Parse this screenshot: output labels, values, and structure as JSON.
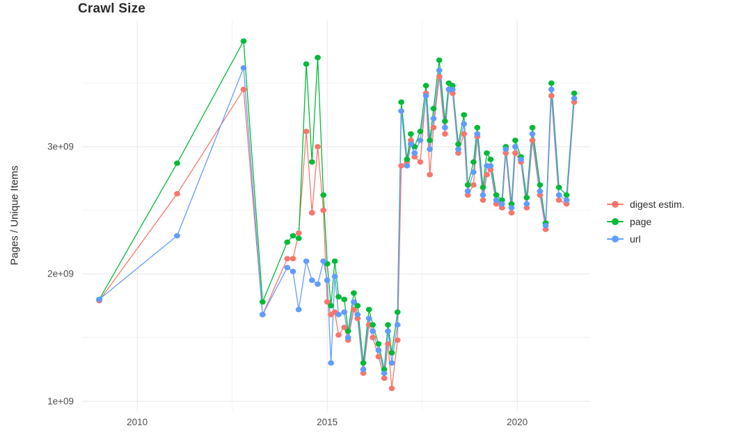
{
  "title": "Crawl Size",
  "chart_data": {
    "type": "line",
    "title": "Crawl Size",
    "xlabel": "",
    "ylabel": "Pages / Unique Items",
    "grid": "on",
    "legend_position": "right",
    "background": "#ffffff",
    "grid_major_color": "#e7e7e7",
    "grid_minor_color": "#f3f3f3",
    "tick_label_color": "#4d4d4d",
    "xlim": [
      2008.55,
      2021.92
    ],
    "ylim": [
      920000000.0,
      4000000000.0
    ],
    "x_ticks": [
      {
        "value": 2010,
        "label": "2010"
      },
      {
        "value": 2015,
        "label": "2015"
      },
      {
        "value": 2020,
        "label": "2020"
      }
    ],
    "y_ticks": [
      {
        "value": 1000000000.0,
        "label": "1e+09"
      },
      {
        "value": 2000000000.0,
        "label": "2e+09"
      },
      {
        "value": 3000000000.0,
        "label": "3e+09"
      }
    ],
    "x_minor_ticks": [
      2012.5,
      2017.5
    ],
    "y_minor_ticks": [
      1500000000.0,
      2500000000.0,
      3500000000.0
    ],
    "x": [
      2009.0,
      2011.05,
      2012.8,
      2013.3,
      2013.95,
      2014.1,
      2014.25,
      2014.45,
      2014.6,
      2014.75,
      2014.9,
      2015.0,
      2015.1,
      2015.2,
      2015.3,
      2015.45,
      2015.55,
      2015.7,
      2015.8,
      2015.95,
      2016.1,
      2016.2,
      2016.35,
      2016.5,
      2016.6,
      2016.7,
      2016.85,
      2016.95,
      2017.1,
      2017.2,
      2017.3,
      2017.45,
      2017.6,
      2017.7,
      2017.8,
      2017.95,
      2018.1,
      2018.2,
      2018.3,
      2018.45,
      2018.6,
      2018.7,
      2018.85,
      2018.95,
      2019.1,
      2019.2,
      2019.3,
      2019.45,
      2019.6,
      2019.7,
      2019.85,
      2019.95,
      2020.1,
      2020.25,
      2020.4,
      2020.6,
      2020.75,
      2020.9,
      2021.1,
      2021.3,
      2021.5
    ],
    "series": [
      {
        "name": "digest estim.",
        "color": "#F8766D",
        "values": [
          1790000000.0,
          2630000000.0,
          3450000000.0,
          1680000000.0,
          2120000000.0,
          2120000000.0,
          2320000000.0,
          3120000000.0,
          2480000000.0,
          3000000000.0,
          2500000000.0,
          1780000000.0,
          1680000000.0,
          1700000000.0,
          1520000000.0,
          1580000000.0,
          1480000000.0,
          1720000000.0,
          1650000000.0,
          1220000000.0,
          1600000000.0,
          1500000000.0,
          1350000000.0,
          1180000000.0,
          1450000000.0,
          1100000000.0,
          1480000000.0,
          2850000000.0,
          2880000000.0,
          3050000000.0,
          2920000000.0,
          2880000000.0,
          3420000000.0,
          2780000000.0,
          3150000000.0,
          3550000000.0,
          3100000000.0,
          3450000000.0,
          3420000000.0,
          2950000000.0,
          3100000000.0,
          2620000000.0,
          2700000000.0,
          3080000000.0,
          2580000000.0,
          2780000000.0,
          2820000000.0,
          2550000000.0,
          2520000000.0,
          2950000000.0,
          2480000000.0,
          2950000000.0,
          2880000000.0,
          2520000000.0,
          3050000000.0,
          2620000000.0,
          2350000000.0,
          3400000000.0,
          2580000000.0,
          2550000000.0,
          3350000000.0
        ]
      },
      {
        "name": "page",
        "color": "#00BA38",
        "values": [
          1800000000.0,
          2870000000.0,
          3830000000.0,
          1780000000.0,
          2250000000.0,
          2300000000.0,
          2280000000.0,
          3650000000.0,
          2880000000.0,
          3700000000.0,
          2620000000.0,
          2080000000.0,
          1750000000.0,
          2100000000.0,
          1820000000.0,
          1800000000.0,
          1550000000.0,
          1850000000.0,
          1750000000.0,
          1300000000.0,
          1720000000.0,
          1600000000.0,
          1450000000.0,
          1250000000.0,
          1600000000.0,
          1380000000.0,
          1700000000.0,
          3350000000.0,
          2900000000.0,
          3100000000.0,
          3000000000.0,
          3120000000.0,
          3480000000.0,
          3050000000.0,
          3300000000.0,
          3680000000.0,
          3200000000.0,
          3500000000.0,
          3480000000.0,
          3020000000.0,
          3250000000.0,
          2700000000.0,
          2880000000.0,
          3150000000.0,
          2680000000.0,
          2950000000.0,
          2900000000.0,
          2620000000.0,
          2580000000.0,
          3000000000.0,
          2550000000.0,
          3050000000.0,
          2920000000.0,
          2600000000.0,
          3150000000.0,
          2700000000.0,
          2400000000.0,
          3500000000.0,
          2680000000.0,
          2620000000.0,
          3420000000.0
        ]
      },
      {
        "name": "url",
        "color": "#619CFF",
        "values": [
          1800000000.0,
          2300000000.0,
          3620000000.0,
          1680000000.0,
          2050000000.0,
          2020000000.0,
          1720000000.0,
          2100000000.0,
          1950000000.0,
          1920000000.0,
          2100000000.0,
          1950000000.0,
          1300000000.0,
          1980000000.0,
          1680000000.0,
          1700000000.0,
          1500000000.0,
          1780000000.0,
          1680000000.0,
          1250000000.0,
          1650000000.0,
          1550000000.0,
          1400000000.0,
          1220000000.0,
          1550000000.0,
          1300000000.0,
          1600000000.0,
          3280000000.0,
          2850000000.0,
          3020000000.0,
          2950000000.0,
          3050000000.0,
          3400000000.0,
          2980000000.0,
          3220000000.0,
          3600000000.0,
          3150000000.0,
          3450000000.0,
          3450000000.0,
          2980000000.0,
          3180000000.0,
          2650000000.0,
          2800000000.0,
          3100000000.0,
          2620000000.0,
          2850000000.0,
          2850000000.0,
          2580000000.0,
          2550000000.0,
          2980000000.0,
          2520000000.0,
          3000000000.0,
          2900000000.0,
          2550000000.0,
          3100000000.0,
          2650000000.0,
          2380000000.0,
          3450000000.0,
          2620000000.0,
          2580000000.0,
          3380000000.0
        ]
      }
    ]
  }
}
